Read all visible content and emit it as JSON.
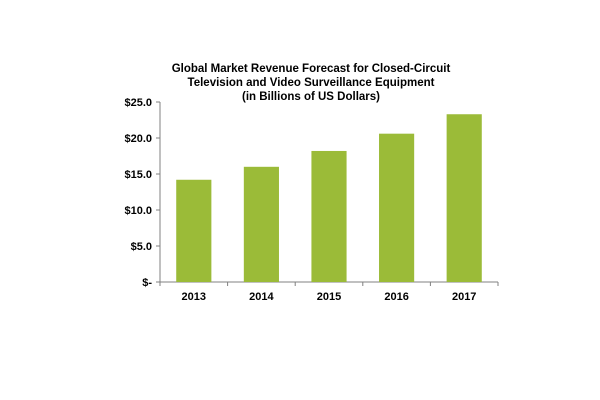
{
  "chart_data": {
    "type": "bar",
    "title_lines": [
      "Global Market Revenue Forecast for Closed-Circuit",
      "Television and Video Surveillance Equipment",
      "(in Billions of US Dollars)"
    ],
    "categories": [
      "2013",
      "2014",
      "2015",
      "2016",
      "2017"
    ],
    "values": [
      14.2,
      16.0,
      18.2,
      20.6,
      23.3
    ],
    "ylim": [
      0,
      25
    ],
    "yticks": [
      0,
      5,
      10,
      15,
      20,
      25
    ],
    "ytick_labels": [
      "$-",
      "$5.0",
      "$10.0",
      "$15.0",
      "$20.0",
      "$25.0"
    ],
    "grid": false,
    "legend": "none",
    "bar_color": "#9bbb38",
    "xlabel": "",
    "ylabel": ""
  }
}
